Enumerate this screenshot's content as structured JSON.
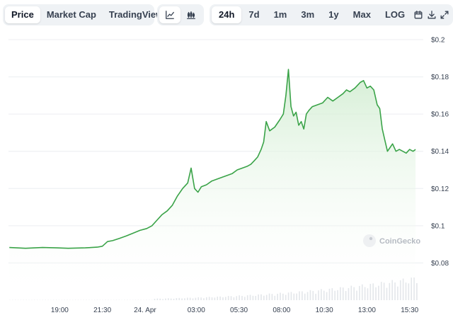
{
  "toolbar": {
    "views": [
      {
        "label": "Price",
        "active": true
      },
      {
        "label": "Market Cap",
        "active": false
      },
      {
        "label": "TradingView",
        "active": false
      }
    ],
    "chart_types": [
      {
        "icon": "line-chart-icon",
        "active": true
      },
      {
        "icon": "candlestick-chart-icon",
        "active": false
      }
    ],
    "ranges": [
      {
        "label": "24h",
        "active": true
      },
      {
        "label": "7d",
        "active": false
      },
      {
        "label": "1m",
        "active": false
      },
      {
        "label": "3m",
        "active": false
      },
      {
        "label": "1y",
        "active": false
      },
      {
        "label": "Max",
        "active": false
      },
      {
        "label": "LOG",
        "active": false
      }
    ],
    "action_icons": [
      "calendar-icon",
      "download-icon",
      "expand-icon"
    ]
  },
  "watermark": "CoinGecko",
  "colors": {
    "line": "#3aa348",
    "fill_top": "#cfeccf",
    "grid": "#eceef1",
    "volume": "#e3e6ea"
  },
  "chart_data": {
    "type": "area",
    "title": "",
    "xlabel": "",
    "ylabel": "",
    "ylim": [
      0.06,
      0.2
    ],
    "y_ticks": [
      {
        "value": 0.08,
        "label": "$0.08"
      },
      {
        "value": 0.1,
        "label": "$0.1"
      },
      {
        "value": 0.12,
        "label": "$0.12"
      },
      {
        "value": 0.14,
        "label": "$0.14"
      },
      {
        "value": 0.16,
        "label": "$0.16"
      },
      {
        "value": 0.18,
        "label": "$0.18"
      },
      {
        "value": 0.2,
        "label": "$0.2"
      }
    ],
    "x_range_hours": [
      16.0,
      16.3
    ],
    "x_ticks": [
      {
        "t": 19.0,
        "label": "19:00"
      },
      {
        "t": 21.5,
        "label": "21:30"
      },
      {
        "t": 24.0,
        "label": "24. Apr"
      },
      {
        "t": 27.0,
        "label": "03:00"
      },
      {
        "t": 29.5,
        "label": "05:30"
      },
      {
        "t": 32.0,
        "label": "08:00"
      },
      {
        "t": 34.5,
        "label": "10:30"
      },
      {
        "t": 37.0,
        "label": "13:00"
      },
      {
        "t": 39.5,
        "label": "15:30"
      }
    ],
    "series": [
      {
        "t": [
          16.05,
          17.0,
          18.0,
          18.8,
          19.5,
          20.5,
          21.2,
          21.5,
          21.8,
          22.1,
          22.5,
          22.9,
          23.3,
          23.7,
          24.1,
          24.4,
          24.7,
          25.0,
          25.3,
          25.6,
          25.9,
          26.2,
          26.5,
          26.7,
          26.9,
          27.1,
          27.3,
          27.6,
          27.9,
          28.2,
          28.5,
          28.8,
          29.1,
          29.4,
          29.7,
          30.0,
          30.2,
          30.4,
          30.6,
          30.8,
          30.95,
          31.1,
          31.3,
          31.6,
          31.9,
          32.1,
          32.25,
          32.4,
          32.55,
          32.7,
          32.85,
          33.0,
          33.15,
          33.3,
          33.45,
          33.6,
          33.8,
          34.1,
          34.4,
          34.7,
          35.0,
          35.3,
          35.6,
          35.8,
          36.0,
          36.3,
          36.6,
          36.8,
          37.0,
          37.2,
          37.4,
          37.6,
          37.75,
          37.9,
          38.05,
          38.2,
          38.35,
          38.5,
          38.7,
          38.9,
          39.1,
          39.3,
          39.5,
          39.7,
          39.85
        ],
        "values": [
          0.0883,
          0.0879,
          0.0883,
          0.0881,
          0.0879,
          0.0881,
          0.0885,
          0.089,
          0.0915,
          0.092,
          0.0932,
          0.0945,
          0.096,
          0.0975,
          0.0985,
          0.1,
          0.103,
          0.106,
          0.108,
          0.111,
          0.116,
          0.12,
          0.123,
          0.131,
          0.12,
          0.118,
          0.121,
          0.122,
          0.124,
          0.125,
          0.126,
          0.127,
          0.128,
          0.13,
          0.131,
          0.132,
          0.133,
          0.135,
          0.137,
          0.141,
          0.145,
          0.156,
          0.151,
          0.153,
          0.157,
          0.16,
          0.17,
          0.184,
          0.164,
          0.159,
          0.161,
          0.154,
          0.156,
          0.152,
          0.16,
          0.162,
          0.164,
          0.165,
          0.166,
          0.169,
          0.167,
          0.169,
          0.171,
          0.173,
          0.172,
          0.174,
          0.177,
          0.178,
          0.174,
          0.175,
          0.173,
          0.165,
          0.163,
          0.152,
          0.146,
          0.14,
          0.142,
          0.144,
          0.14,
          0.141,
          0.14,
          0.139,
          0.141,
          0.14,
          0.141
        ]
      }
    ]
  }
}
